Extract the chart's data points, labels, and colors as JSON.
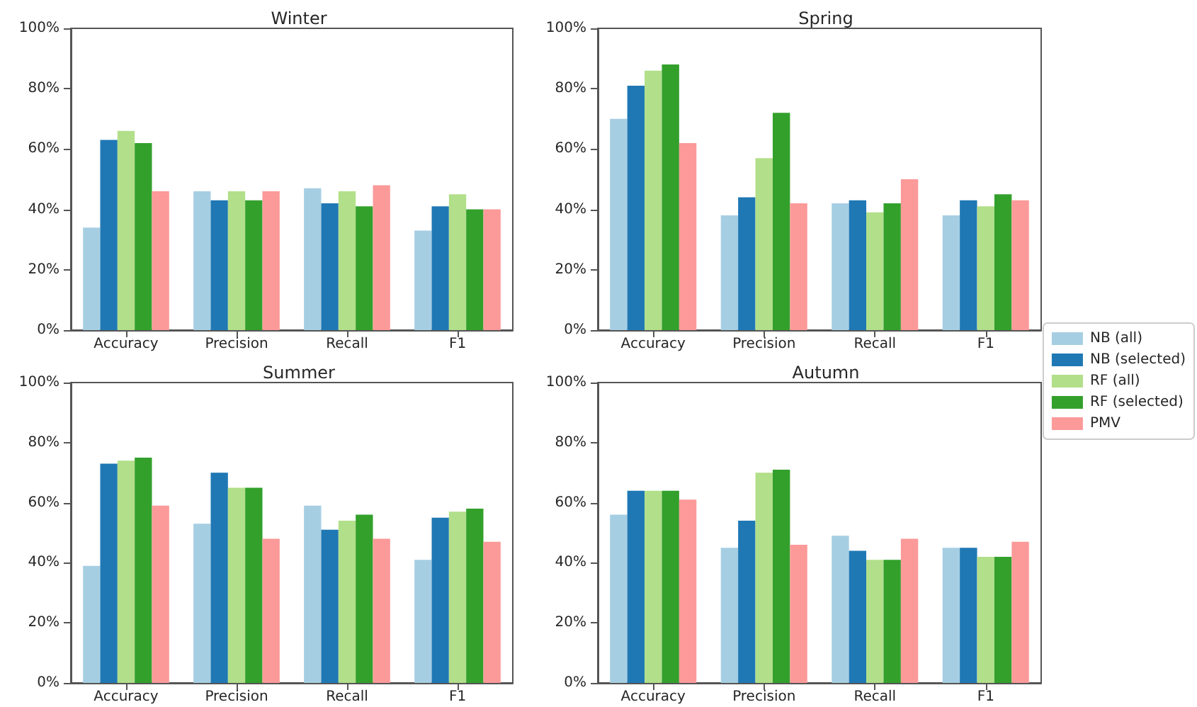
{
  "chart_data": [
    {
      "type": "bar",
      "title": "Winter",
      "categories": [
        "Accuracy",
        "Precision",
        "Recall",
        "F1"
      ],
      "ylim": [
        0,
        100
      ],
      "yticks": [
        {
          "value": 0,
          "label": "0%"
        },
        {
          "value": 20,
          "label": "20%"
        },
        {
          "value": 40,
          "label": "40%"
        },
        {
          "value": 60,
          "label": "60%"
        },
        {
          "value": 80,
          "label": "80%"
        },
        {
          "value": 100,
          "label": "100%"
        }
      ],
      "grid": false,
      "series": [
        {
          "color": "#a6cee3",
          "values": [
            34,
            46,
            47,
            33
          ]
        },
        {
          "color": "#1f78b4",
          "values": [
            63,
            43,
            42,
            41
          ]
        },
        {
          "color": "#b2df8a",
          "values": [
            66,
            46,
            46,
            45
          ]
        },
        {
          "color": "#33a02c",
          "values": [
            62,
            43,
            41,
            40
          ]
        },
        {
          "color": "#fb9a99",
          "values": [
            46,
            46,
            48,
            40
          ]
        }
      ]
    },
    {
      "type": "bar",
      "title": "Spring",
      "categories": [
        "Accuracy",
        "Precision",
        "Recall",
        "F1"
      ],
      "ylim": [
        0,
        100
      ],
      "yticks": [
        {
          "value": 0,
          "label": "0%"
        },
        {
          "value": 20,
          "label": "20%"
        },
        {
          "value": 40,
          "label": "40%"
        },
        {
          "value": 60,
          "label": "60%"
        },
        {
          "value": 80,
          "label": "80%"
        },
        {
          "value": 100,
          "label": "100%"
        }
      ],
      "grid": false,
      "legend": "right",
      "series": [
        {
          "name": "NB (all)",
          "color": "#a6cee3",
          "values": [
            70,
            38,
            42,
            38
          ]
        },
        {
          "name": "NB (selected)",
          "color": "#1f78b4",
          "values": [
            81,
            44,
            43,
            43
          ]
        },
        {
          "name": "RF (all)",
          "color": "#b2df8a",
          "values": [
            86,
            57,
            39,
            41
          ]
        },
        {
          "name": "RF (selected)",
          "color": "#33a02c",
          "values": [
            88,
            72,
            42,
            45
          ]
        },
        {
          "name": "PMV",
          "color": "#fb9a99",
          "values": [
            62,
            42,
            50,
            43
          ]
        }
      ]
    },
    {
      "type": "bar",
      "title": "Summer",
      "categories": [
        "Accuracy",
        "Precision",
        "Recall",
        "F1"
      ],
      "ylim": [
        0,
        100
      ],
      "yticks": [
        {
          "value": 0,
          "label": "0%"
        },
        {
          "value": 20,
          "label": "20%"
        },
        {
          "value": 40,
          "label": "40%"
        },
        {
          "value": 60,
          "label": "60%"
        },
        {
          "value": 80,
          "label": "80%"
        },
        {
          "value": 100,
          "label": "100%"
        }
      ],
      "grid": false,
      "series": [
        {
          "color": "#a6cee3",
          "values": [
            39,
            53,
            59,
            41
          ]
        },
        {
          "color": "#1f78b4",
          "values": [
            73,
            70,
            51,
            55
          ]
        },
        {
          "color": "#b2df8a",
          "values": [
            74,
            65,
            54,
            57
          ]
        },
        {
          "color": "#33a02c",
          "values": [
            75,
            65,
            56,
            58
          ]
        },
        {
          "color": "#fb9a99",
          "values": [
            59,
            48,
            48,
            47
          ]
        }
      ]
    },
    {
      "type": "bar",
      "title": "Autumn",
      "categories": [
        "Accuracy",
        "Precision",
        "Recall",
        "F1"
      ],
      "ylim": [
        0,
        100
      ],
      "yticks": [
        {
          "value": 0,
          "label": "0%"
        },
        {
          "value": 20,
          "label": "20%"
        },
        {
          "value": 40,
          "label": "40%"
        },
        {
          "value": 60,
          "label": "60%"
        },
        {
          "value": 80,
          "label": "80%"
        },
        {
          "value": 100,
          "label": "100%"
        }
      ],
      "grid": false,
      "series": [
        {
          "color": "#a6cee3",
          "values": [
            56,
            45,
            49,
            45
          ]
        },
        {
          "color": "#1f78b4",
          "values": [
            64,
            54,
            44,
            45
          ]
        },
        {
          "color": "#b2df8a",
          "values": [
            64,
            70,
            41,
            42
          ]
        },
        {
          "color": "#33a02c",
          "values": [
            64,
            71,
            41,
            42
          ]
        },
        {
          "color": "#fb9a99",
          "values": [
            61,
            46,
            48,
            47
          ]
        }
      ]
    }
  ]
}
